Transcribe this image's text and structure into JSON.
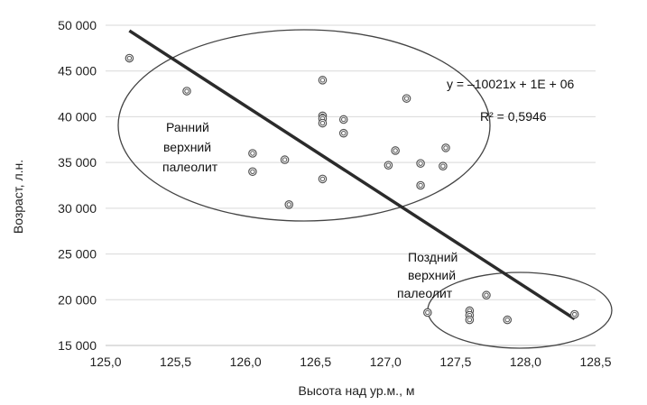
{
  "chart_data": {
    "type": "scatter",
    "xlabel": "Высота над ур.м., м",
    "ylabel": "Возраст, л.н.",
    "xlim": [
      125.0,
      128.5
    ],
    "ylim": [
      15000,
      50000
    ],
    "x_ticks": [
      "125,0",
      "125,5",
      "126,0",
      "126,5",
      "127,0",
      "127,5",
      "128,0",
      "128,5"
    ],
    "y_ticks": [
      "15 000",
      "20 000",
      "25 000",
      "30 000",
      "35 000",
      "40 000",
      "45 000",
      "50 000"
    ],
    "grid": "horizontal",
    "points": [
      {
        "x": 125.17,
        "y": 46400
      },
      {
        "x": 125.58,
        "y": 42800
      },
      {
        "x": 126.05,
        "y": 36000
      },
      {
        "x": 126.05,
        "y": 34000
      },
      {
        "x": 126.28,
        "y": 35300
      },
      {
        "x": 126.31,
        "y": 30400
      },
      {
        "x": 126.55,
        "y": 44000
      },
      {
        "x": 126.55,
        "y": 40100
      },
      {
        "x": 126.55,
        "y": 39800
      },
      {
        "x": 126.55,
        "y": 39300
      },
      {
        "x": 126.55,
        "y": 33200
      },
      {
        "x": 126.7,
        "y": 39700
      },
      {
        "x": 126.7,
        "y": 38200
      },
      {
        "x": 127.02,
        "y": 34700
      },
      {
        "x": 127.07,
        "y": 36300
      },
      {
        "x": 127.15,
        "y": 42000
      },
      {
        "x": 127.25,
        "y": 34900
      },
      {
        "x": 127.25,
        "y": 32500
      },
      {
        "x": 127.41,
        "y": 34600
      },
      {
        "x": 127.43,
        "y": 36600
      },
      {
        "x": 127.3,
        "y": 18600
      },
      {
        "x": 127.6,
        "y": 18800
      },
      {
        "x": 127.6,
        "y": 18300
      },
      {
        "x": 127.6,
        "y": 17800
      },
      {
        "x": 127.72,
        "y": 20500
      },
      {
        "x": 127.87,
        "y": 17800
      },
      {
        "x": 128.35,
        "y": 18400
      }
    ],
    "trendline": {
      "from": {
        "x": 125.17,
        "y": 49400
      },
      "to": {
        "x": 128.35,
        "y": 17900
      },
      "equation": "y = –10021x + 1E + 06",
      "r2": "R² = 0,5946"
    },
    "groups": [
      {
        "label_lines": [
          "Ранний",
          "верхний",
          "палеолит"
        ]
      },
      {
        "label_lines": [
          "Поздний",
          "верхний",
          "палеолит"
        ]
      }
    ]
  }
}
